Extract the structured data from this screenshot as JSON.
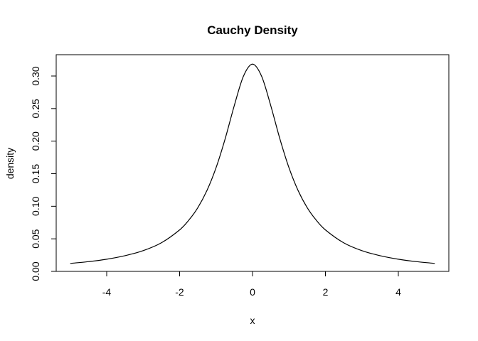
{
  "chart_data": {
    "type": "line",
    "title": "Cauchy Density",
    "xlabel": "x",
    "ylabel": "density",
    "xlim": [
      -5,
      5
    ],
    "ylim": [
      0,
      0.32
    ],
    "x_ticks": [
      -4,
      -2,
      0,
      2,
      4
    ],
    "x_tick_labels": [
      "-4",
      "-2",
      "0",
      "2",
      "4"
    ],
    "y_ticks": [
      0.0,
      0.05,
      0.1,
      0.15,
      0.2,
      0.25,
      0.3
    ],
    "y_tick_labels": [
      "0.00",
      "0.05",
      "0.10",
      "0.15",
      "0.20",
      "0.25",
      "0.30"
    ],
    "grid": false,
    "series": [
      {
        "x": [
          -5,
          -4.5,
          -4,
          -3.5,
          -3,
          -2.5,
          -2,
          -1.75,
          -1.5,
          -1.25,
          -1,
          -0.75,
          -0.5,
          -0.25,
          0,
          0.25,
          0.5,
          0.75,
          1,
          1.25,
          1.5,
          1.75,
          2,
          2.5,
          3,
          3.5,
          4,
          4.5,
          5
        ],
        "values": [
          0.0122,
          0.0149,
          0.0187,
          0.0241,
          0.0318,
          0.0439,
          0.0637,
          0.0785,
          0.0979,
          0.1242,
          0.1592,
          0.2037,
          0.2546,
          0.2996,
          0.3183,
          0.2996,
          0.2546,
          0.2037,
          0.1592,
          0.1242,
          0.0979,
          0.0785,
          0.0637,
          0.0439,
          0.0318,
          0.0241,
          0.0187,
          0.0149,
          0.0122
        ]
      }
    ]
  }
}
